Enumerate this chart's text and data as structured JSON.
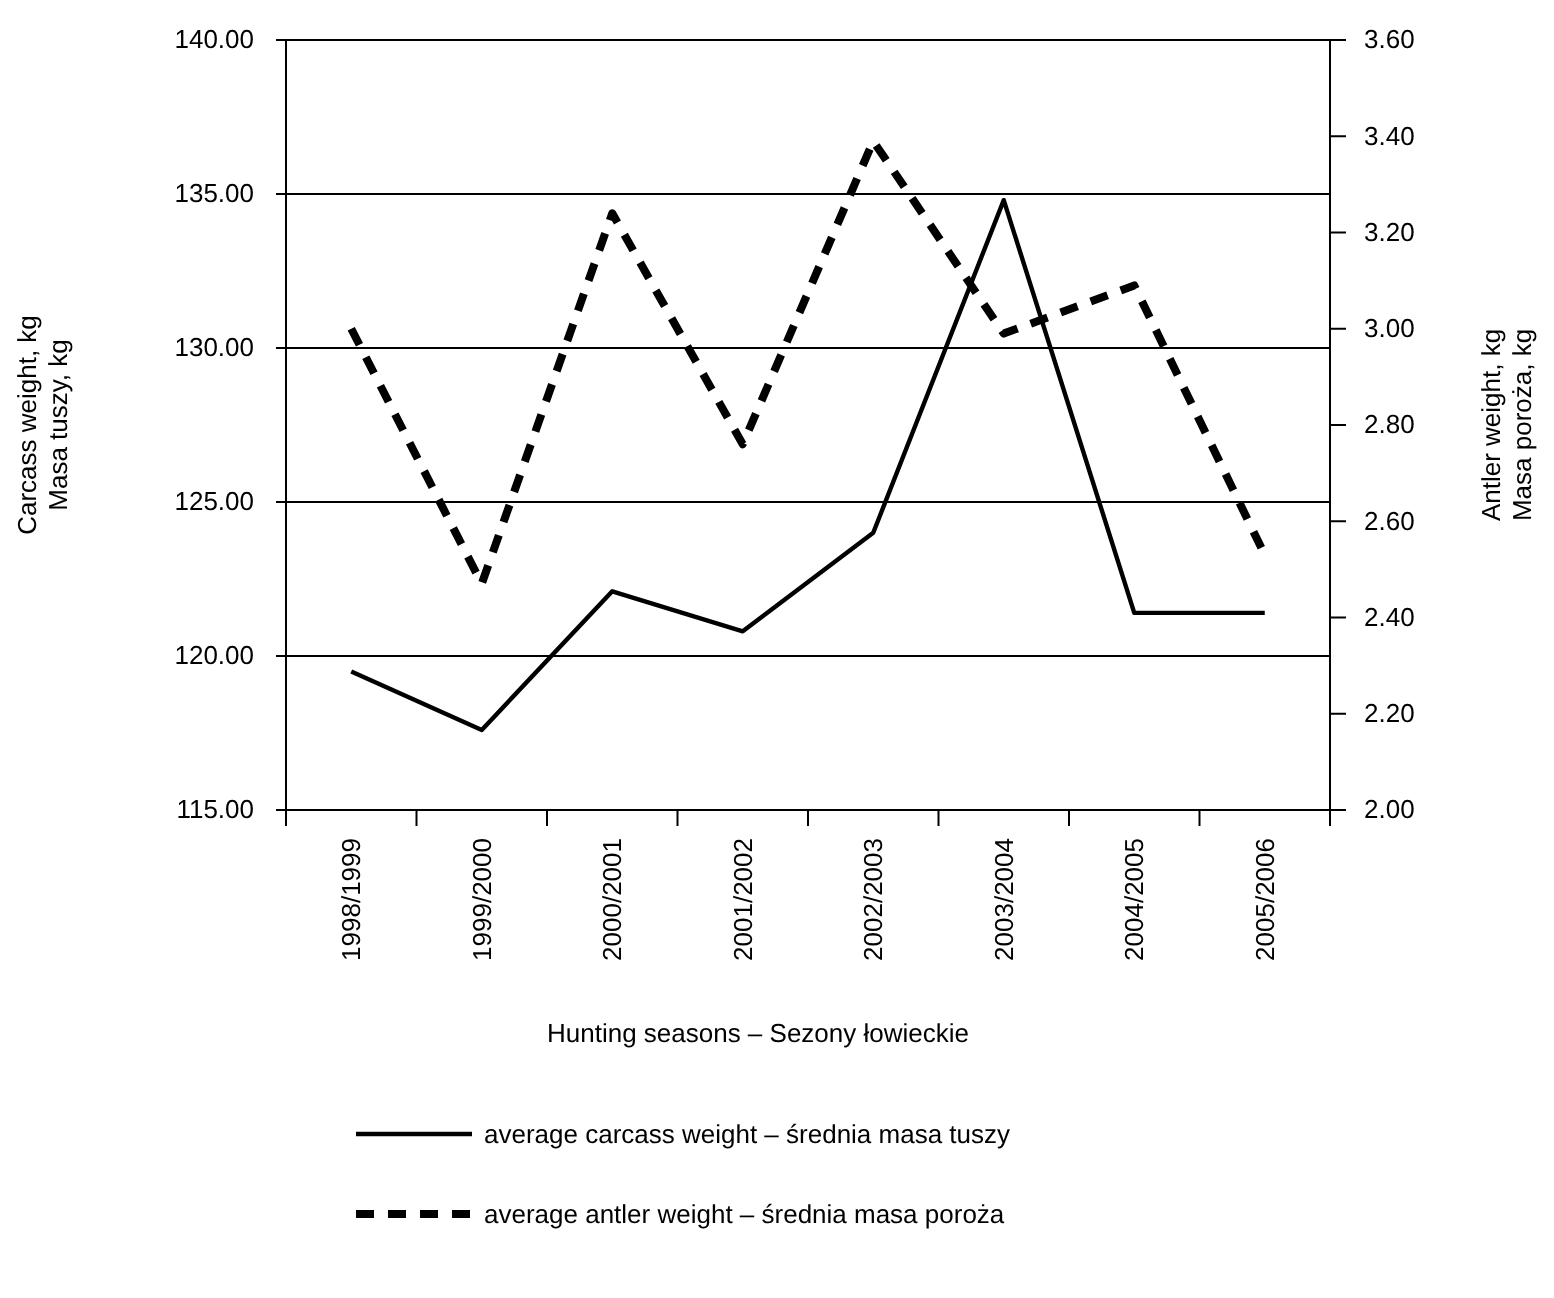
{
  "chart_data": {
    "type": "line",
    "xlabel": "Hunting seasons – Sezony łowieckie",
    "ylabel": "Carcass weight, kg\nMasa tuszy, kg",
    "y2label": "Antler weight, kg\nMasa poroża, kg",
    "categories": [
      "1998/1999",
      "1999/2000",
      "2000/2001",
      "2001/2002",
      "2002/2003",
      "2003/2004",
      "2004/2005",
      "2005/2006"
    ],
    "series": [
      {
        "name": "average carcass weight – średnia masa tuszy",
        "color": "#000000",
        "line_style": "solid",
        "values": [
          119.5,
          117.6,
          122.1,
          120.8,
          124.0,
          134.8,
          121.4,
          121.4
        ]
      },
      {
        "name": "average antler weight – średnia masa poroża",
        "color": "#000000",
        "line_style": "dashed",
        "axis": "y2",
        "values": [
          3.0,
          2.47,
          3.24,
          2.76,
          3.39,
          2.99,
          3.09,
          2.53
        ]
      }
    ],
    "ylim": [
      115,
      140
    ],
    "yticks": [
      {
        "value": 115,
        "label": "115.00"
      },
      {
        "value": 120,
        "label": "120.00"
      },
      {
        "value": 125,
        "label": "125.00"
      },
      {
        "value": 130,
        "label": "130.00"
      },
      {
        "value": 135,
        "label": "135.00"
      },
      {
        "value": 140,
        "label": "140.00"
      }
    ],
    "y2lim": [
      2.0,
      3.6
    ],
    "y2ticks": [
      {
        "value": 2.0,
        "label": "2.00"
      },
      {
        "value": 2.2,
        "label": "2.20"
      },
      {
        "value": 2.4,
        "label": "2.40"
      },
      {
        "value": 2.6,
        "label": "2.60"
      },
      {
        "value": 2.8,
        "label": "2.80"
      },
      {
        "value": 3.0,
        "label": "3.00"
      },
      {
        "value": 3.2,
        "label": "3.20"
      },
      {
        "value": 3.4,
        "label": "3.40"
      },
      {
        "value": 3.6,
        "label": "3.60"
      }
    ],
    "grid": "y",
    "legend": "bottom",
    "marker": "none"
  }
}
